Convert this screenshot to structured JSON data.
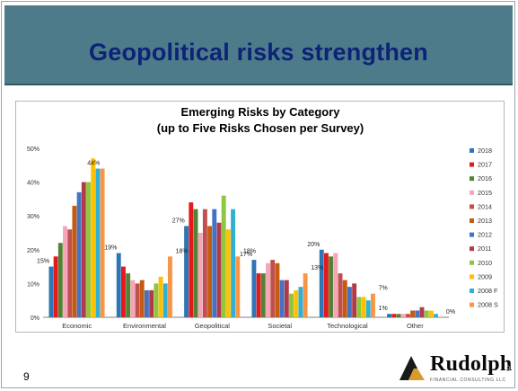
{
  "slide": {
    "title": "Geopolitical risks strengthen",
    "page_number": "9",
    "logo_text": "Rudolph",
    "logo_subtext": "FINANCIAL CONSULTING LLC",
    "logo_page_number": "9"
  },
  "chart_data": {
    "type": "bar",
    "title": "Emerging Risks by Category",
    "subtitle": "(up to Five Risks Chosen per Survey)",
    "xlabel": "",
    "ylabel": "",
    "ylim": [
      0,
      50
    ],
    "yticks": [
      "0%",
      "10%",
      "20%",
      "30%",
      "40%",
      "50%"
    ],
    "grid": false,
    "legend_position": "right",
    "categories": [
      "Economic",
      "Environmental",
      "Geopolitical",
      "Societal",
      "Technological",
      "Other"
    ],
    "series": [
      {
        "name": "2018",
        "color": "#2e75b6",
        "values": [
          15,
          19,
          27,
          17,
          20,
          1
        ]
      },
      {
        "name": "2017",
        "color": "#e31a1c",
        "values": [
          18,
          15,
          34,
          13,
          19,
          1
        ]
      },
      {
        "name": "2016",
        "color": "#548235",
        "values": [
          22,
          13,
          32,
          13,
          18,
          1
        ]
      },
      {
        "name": "2015",
        "color": "#f4a6b8",
        "values": [
          27,
          11,
          25,
          16,
          19,
          1
        ]
      },
      {
        "name": "2014",
        "color": "#c0504d",
        "values": [
          26,
          10,
          32,
          17,
          13,
          1
        ]
      },
      {
        "name": "2013",
        "color": "#c55a11",
        "values": [
          33,
          11,
          27,
          16,
          11,
          2
        ]
      },
      {
        "name": "2012",
        "color": "#4472c4",
        "values": [
          37,
          8,
          32,
          11,
          9,
          2
        ]
      },
      {
        "name": "2011",
        "color": "#b23a48",
        "values": [
          40,
          8,
          28,
          11,
          10,
          3
        ]
      },
      {
        "name": "2010",
        "color": "#8dc63f",
        "values": [
          40,
          10,
          36,
          7,
          6,
          2
        ]
      },
      {
        "name": "2009",
        "color": "#ffc000",
        "values": [
          47,
          12,
          26,
          8,
          6,
          2
        ]
      },
      {
        "name": "2008 F",
        "color": "#31b0d5",
        "values": [
          44,
          10,
          32,
          9,
          5,
          1
        ]
      },
      {
        "name": "2008 S",
        "color": "#f79646",
        "values": [
          44,
          18,
          18,
          13,
          7,
          0
        ]
      }
    ],
    "annotations": [
      {
        "category": "Economic",
        "text": "15%"
      },
      {
        "category": "Economic",
        "text": "44%"
      },
      {
        "category": "Environmental",
        "text": "19%"
      },
      {
        "category": "Environmental",
        "text": "18%"
      },
      {
        "category": "Geopolitical",
        "text": "27%"
      },
      {
        "category": "Geopolitical",
        "text": "18%"
      },
      {
        "category": "Societal",
        "text": "17%"
      },
      {
        "category": "Societal",
        "text": "13%"
      },
      {
        "category": "Technological",
        "text": "20%"
      },
      {
        "category": "Technological",
        "text": "7%"
      },
      {
        "category": "Other",
        "text": "1%"
      },
      {
        "category": "Other",
        "text": "0%"
      }
    ]
  }
}
